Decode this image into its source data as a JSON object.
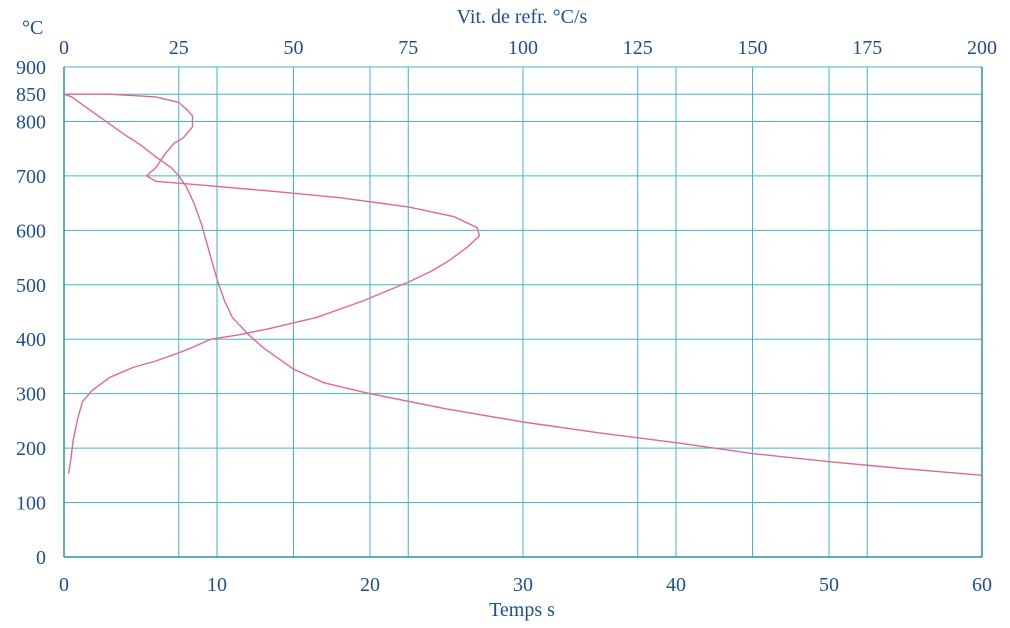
{
  "chart_data": {
    "type": "line",
    "title": "",
    "y_axis": {
      "unit_label": "°C",
      "min": 0,
      "max": 900,
      "ticks": [
        0,
        100,
        200,
        300,
        400,
        500,
        600,
        700,
        800,
        850,
        900
      ]
    },
    "x_bottom": {
      "label": "Temps s",
      "min": 0,
      "max": 60,
      "ticks": [
        0,
        10,
        20,
        30,
        40,
        50,
        60
      ]
    },
    "x_top": {
      "label": "Vit. de refr. °C/s",
      "min": 0,
      "max": 200,
      "ticks": [
        0,
        25,
        50,
        75,
        100,
        125,
        150,
        175,
        200
      ]
    },
    "grid": true,
    "colors": {
      "grid": "#3fb6c9",
      "curve": "#e06a8c",
      "text": "#1f4e8c"
    },
    "series": [
      {
        "axis": "bottom",
        "points": [
          [
            0,
            850
          ],
          [
            0.5,
            845
          ],
          [
            1,
            835
          ],
          [
            2,
            815
          ],
          [
            3,
            795
          ],
          [
            4,
            775
          ],
          [
            5,
            757
          ],
          [
            6,
            735
          ],
          [
            7,
            715
          ],
          [
            7.5,
            700
          ],
          [
            8,
            680
          ],
          [
            8.5,
            650
          ],
          [
            9,
            610
          ],
          [
            9.5,
            560
          ],
          [
            10,
            510
          ],
          [
            10.5,
            470
          ],
          [
            11,
            440
          ],
          [
            12,
            410
          ],
          [
            13,
            385
          ],
          [
            14,
            365
          ],
          [
            15,
            345
          ],
          [
            17,
            320
          ],
          [
            20,
            300
          ],
          [
            25,
            272
          ],
          [
            30,
            248
          ],
          [
            35,
            228
          ],
          [
            40,
            210
          ],
          [
            45,
            190
          ],
          [
            50,
            175
          ],
          [
            55,
            162
          ],
          [
            60,
            150
          ]
        ]
      },
      {
        "axis": "top",
        "points": [
          [
            1,
            153
          ],
          [
            1.5,
            180
          ],
          [
            2,
            215
          ],
          [
            3,
            255
          ],
          [
            4,
            285
          ],
          [
            6,
            305
          ],
          [
            10,
            330
          ],
          [
            15,
            348
          ],
          [
            20,
            360
          ],
          [
            25,
            375
          ],
          [
            28,
            385
          ],
          [
            32,
            400
          ],
          [
            38,
            408
          ],
          [
            45,
            420
          ],
          [
            55,
            440
          ],
          [
            65,
            470
          ],
          [
            75,
            505
          ],
          [
            80,
            525
          ],
          [
            84,
            545
          ],
          [
            88,
            570
          ],
          [
            90.5,
            590
          ],
          [
            90,
            605
          ],
          [
            85,
            625
          ],
          [
            75,
            643
          ],
          [
            60,
            660
          ],
          [
            45,
            672
          ],
          [
            30,
            683
          ],
          [
            20,
            690
          ],
          [
            18,
            700
          ],
          [
            20,
            715
          ],
          [
            22,
            740
          ],
          [
            24,
            760
          ],
          [
            26,
            770
          ],
          [
            28,
            790
          ],
          [
            28,
            810
          ],
          [
            27,
            820
          ],
          [
            25,
            835
          ],
          [
            20,
            845
          ],
          [
            10,
            850
          ],
          [
            0,
            850
          ]
        ]
      }
    ]
  }
}
